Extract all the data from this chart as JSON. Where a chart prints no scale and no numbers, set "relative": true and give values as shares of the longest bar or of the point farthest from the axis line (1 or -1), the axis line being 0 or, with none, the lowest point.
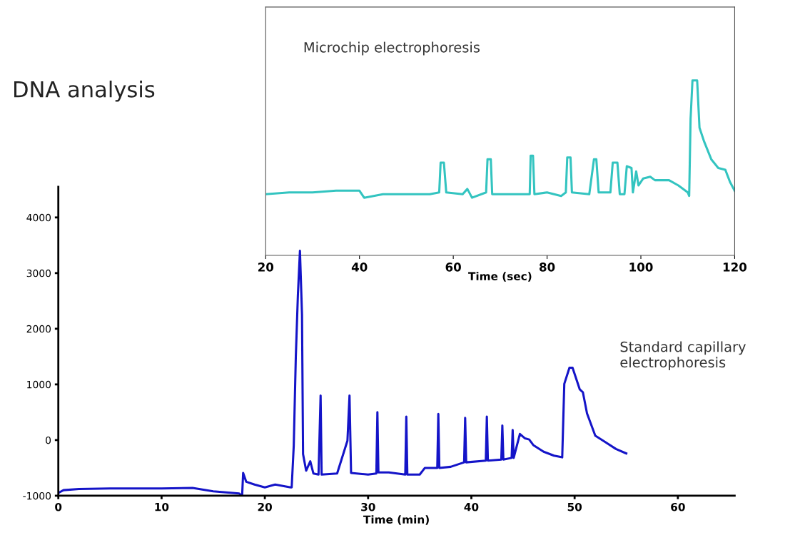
{
  "chart_data": [
    {
      "type": "line",
      "title": "DNA analysis",
      "xlabel": "Time (min)",
      "annotations": [
        "Standard capillary\nelectrophoresis"
      ],
      "xlim": [
        0,
        65.5
      ],
      "xticks": [
        0,
        10,
        20,
        30,
        40,
        50,
        60
      ],
      "ylim": [
        -1000,
        4550
      ],
      "yticks": [
        -1000,
        0,
        1000,
        2000,
        3000,
        4000
      ],
      "legend": false,
      "series": [
        {
          "color": "#1414c8",
          "x": [
            0,
            0.5,
            2,
            5,
            10,
            13,
            15,
            17.5,
            17.8,
            17.9,
            18.2,
            19,
            20,
            21,
            22.5,
            22.6,
            22.8,
            23.0,
            23.2,
            23.4,
            23.6,
            23.7,
            24.0,
            24.4,
            24.7,
            25.2,
            25.4,
            25.5,
            27,
            28.0,
            28.2,
            28.35,
            30,
            30.8,
            30.9,
            31.0,
            32,
            33.6,
            33.7,
            33.8,
            35,
            35.5,
            36.7,
            36.8,
            36.9,
            38,
            39.3,
            39.4,
            39.5,
            41.4,
            41.5,
            41.6,
            42.9,
            43,
            43.1,
            43.9,
            44,
            44.1,
            44.7,
            45.2,
            45.6,
            46,
            47,
            48,
            48.8,
            49.0,
            49.5,
            49.8,
            50.5,
            50.8,
            51.2,
            52,
            53,
            54,
            55
          ],
          "values": [
            -950,
            -900,
            -880,
            -870,
            -870,
            -860,
            -920,
            -960,
            -1000,
            -590,
            -750,
            -800,
            -850,
            -800,
            -850,
            -850,
            -100,
            1500,
            2600,
            3400,
            2250,
            -250,
            -550,
            -380,
            -600,
            -620,
            800,
            -620,
            -600,
            -10,
            800,
            -590,
            -620,
            -600,
            500,
            -580,
            -580,
            -620,
            420,
            -620,
            -620,
            -500,
            -500,
            470,
            -500,
            -480,
            -400,
            400,
            -400,
            -370,
            420,
            -370,
            -350,
            260,
            -350,
            -320,
            180,
            -320,
            110,
            30,
            10,
            -90,
            -210,
            -280,
            -310,
            1010,
            1300,
            1300,
            910,
            860,
            480,
            80,
            -40,
            -160,
            -240
          ]
        }
      ]
    },
    {
      "type": "line",
      "xlabel": "Time (sec)",
      "annotations": [
        "Microchip electrophoresis"
      ],
      "relative": true,
      "xlim": [
        20,
        120
      ],
      "xticks": [
        20,
        40,
        60,
        80,
        100,
        120
      ],
      "legend": false,
      "series": [
        {
          "color": "#33c4c0",
          "x": [
            20,
            25,
            30,
            35,
            40,
            41,
            45,
            50,
            55,
            57,
            57.3,
            58,
            58.5,
            62,
            63,
            64,
            67,
            67.3,
            68,
            68.3,
            72,
            76.3,
            76.5,
            77,
            77.3,
            80,
            83,
            84,
            84.3,
            85,
            85.3,
            89,
            90,
            90.5,
            91,
            93.5,
            94,
            95,
            95.5,
            96.5,
            97,
            98,
            98.3,
            99,
            99.5,
            100.5,
            102,
            103,
            106,
            108,
            110,
            110.3,
            110.6,
            111,
            112,
            112.5,
            113.5,
            115,
            116.5,
            118,
            119,
            120
          ],
          "values": [
            0.35,
            0.36,
            0.36,
            0.37,
            0.37,
            0.33,
            0.35,
            0.35,
            0.35,
            0.36,
            0.53,
            0.53,
            0.36,
            0.35,
            0.38,
            0.33,
            0.36,
            0.55,
            0.55,
            0.35,
            0.35,
            0.35,
            0.57,
            0.57,
            0.35,
            0.36,
            0.34,
            0.36,
            0.56,
            0.56,
            0.36,
            0.35,
            0.55,
            0.55,
            0.36,
            0.36,
            0.53,
            0.53,
            0.35,
            0.35,
            0.51,
            0.5,
            0.36,
            0.48,
            0.4,
            0.44,
            0.45,
            0.43,
            0.43,
            0.4,
            0.36,
            0.34,
            0.78,
            1.0,
            1.0,
            0.73,
            0.65,
            0.55,
            0.5,
            0.49,
            0.42,
            0.37
          ]
        }
      ]
    }
  ]
}
